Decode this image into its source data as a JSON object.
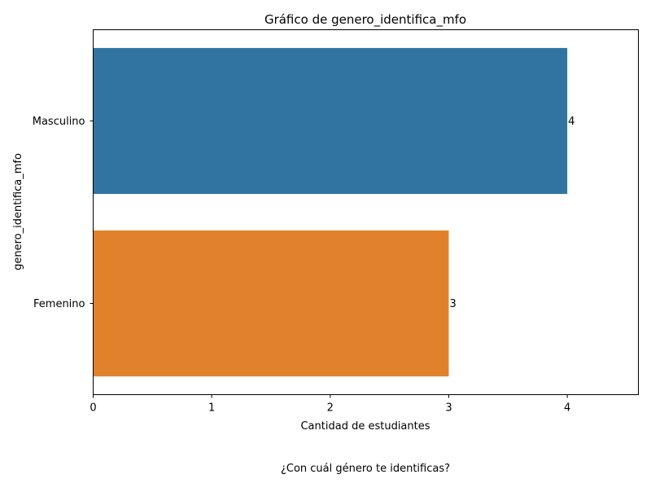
{
  "chart_data": {
    "type": "bar",
    "orientation": "horizontal",
    "title": "Gráfico de genero_identifica_mfo",
    "xlabel": "Cantidad de estudiantes",
    "ylabel": "genero_identifica_mfo",
    "caption": "¿Con cuál género te identificas?",
    "categories": [
      "Masculino",
      "Femenino"
    ],
    "values": [
      4,
      3
    ],
    "data_labels": [
      "4",
      "3"
    ],
    "bar_colors": [
      "#3274a1",
      "#e1812c"
    ],
    "xlim": [
      0,
      4.6
    ],
    "xticks": [
      0,
      1,
      2,
      3,
      4
    ],
    "xtick_labels": [
      "0",
      "1",
      "2",
      "3",
      "4"
    ],
    "grid": false,
    "legend": "none"
  }
}
